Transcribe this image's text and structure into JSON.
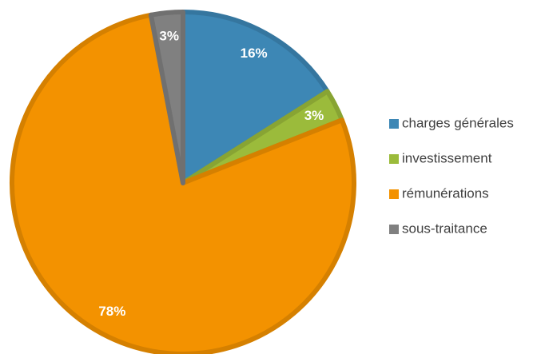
{
  "chart_data": {
    "type": "pie",
    "categories": [
      "charges générales",
      "investissement",
      "rémunérations",
      "sous-traitance"
    ],
    "values": [
      16,
      3,
      78,
      3
    ],
    "value_labels": [
      "16%",
      "3%",
      "78%",
      "3%"
    ],
    "colors": [
      "#3d87b5",
      "#9bbb3b",
      "#f39200",
      "#808080"
    ],
    "legend": "right"
  }
}
